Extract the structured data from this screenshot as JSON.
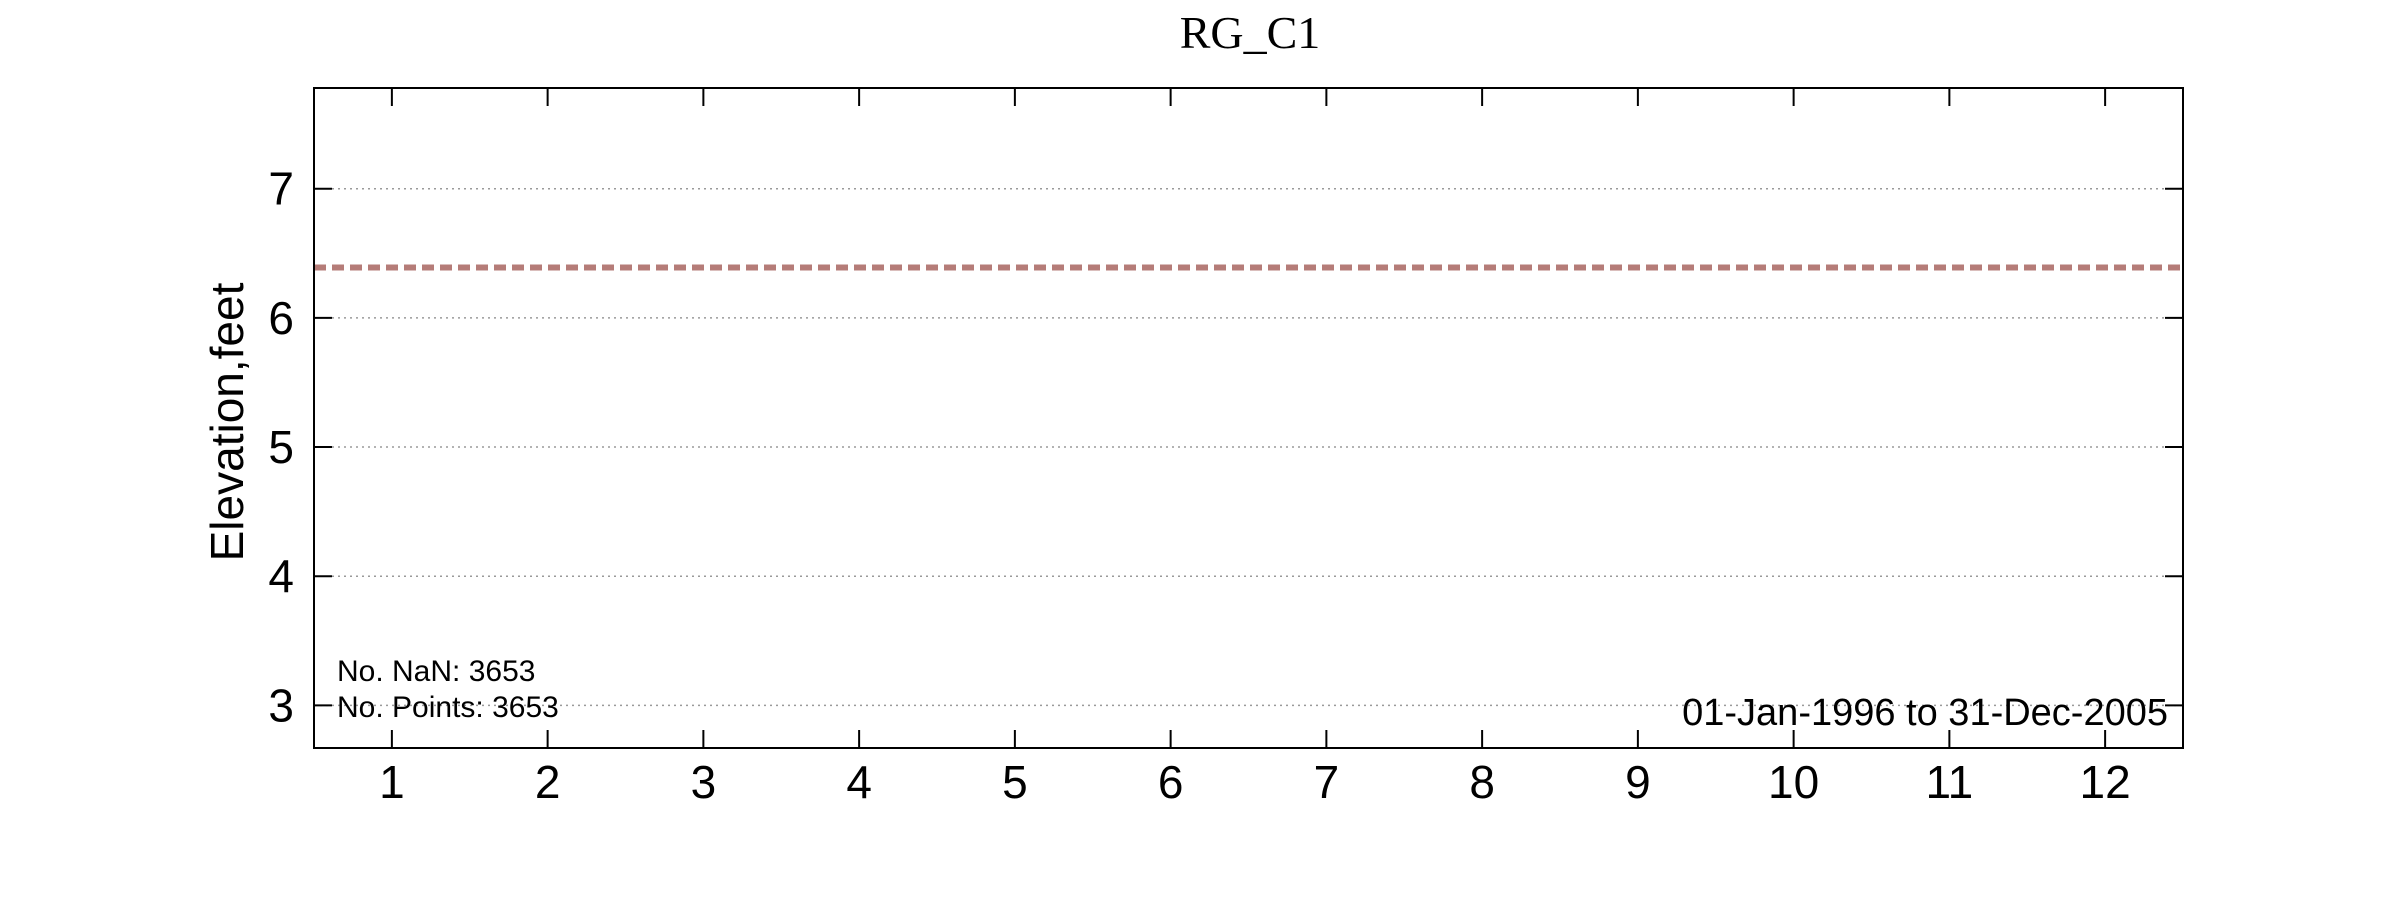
{
  "chart_data": {
    "type": "line",
    "title": "RG_C1",
    "xlabel": "",
    "ylabel": "Elevation,feet",
    "x_ticks": [
      "1",
      "2",
      "3",
      "4",
      "5",
      "6",
      "7",
      "8",
      "9",
      "10",
      "11",
      "12"
    ],
    "y_ticks": [
      "3",
      "4",
      "5",
      "6",
      "7"
    ],
    "xlim": [
      0.5,
      12.5
    ],
    "ylim": [
      2.67,
      7.78
    ],
    "grid": "horizontal dotted",
    "series": [
      {
        "style": "dashed",
        "color": "#b57c78",
        "x": [
          0.5,
          12.5
        ],
        "y": [
          6.39,
          6.39
        ]
      }
    ],
    "annotations": {
      "nan_count": "No. NaN: 3653",
      "points_count": "No. Points: 3653",
      "date_range": "01-Jan-1996 to 31-Dec-2005"
    }
  }
}
